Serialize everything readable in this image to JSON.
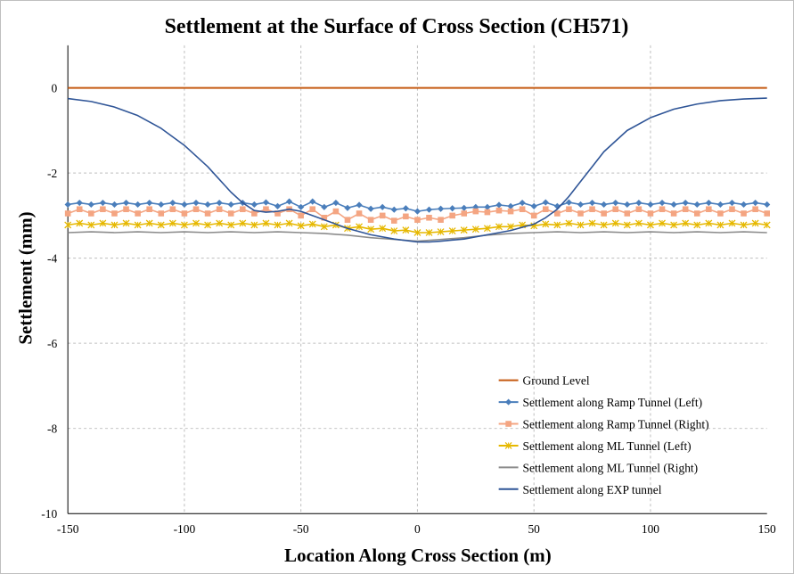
{
  "chart_data": {
    "type": "line",
    "title": "Settlement at the Surface of Cross Section (CH571)",
    "xlabel": "Location Along Cross Section (m)",
    "ylabel": "Settlement (mm)",
    "xlim": [
      -150,
      150
    ],
    "ylim": [
      -10,
      1
    ],
    "xticks": [
      "-150",
      "-100",
      "-50",
      "0",
      "50",
      "100",
      "150"
    ],
    "yticks": [
      "0",
      "-2",
      "-4",
      "-6",
      "-8",
      "-10"
    ],
    "grid": true,
    "legend_position": "bottom-right",
    "series": [
      {
        "name": "Ground Level",
        "color": "#c55a11",
        "marker": "none",
        "x": [
          -150,
          150
        ],
        "y": [
          0,
          0
        ]
      },
      {
        "name": "Settlement along Ramp Tunnel (Left)",
        "color": "#4a7ebb",
        "marker": "diamond",
        "x": [
          -150,
          -145,
          -140,
          -135,
          -130,
          -125,
          -120,
          -115,
          -110,
          -105,
          -100,
          -95,
          -90,
          -85,
          -80,
          -75,
          -70,
          -65,
          -60,
          -55,
          -50,
          -45,
          -40,
          -35,
          -30,
          -25,
          -20,
          -15,
          -10,
          -5,
          0,
          5,
          10,
          15,
          20,
          25,
          30,
          35,
          40,
          45,
          50,
          55,
          60,
          65,
          70,
          75,
          80,
          85,
          90,
          95,
          100,
          105,
          110,
          115,
          120,
          125,
          130,
          135,
          140,
          145,
          150
        ],
        "y": [
          -2.74,
          -2.7,
          -2.74,
          -2.7,
          -2.74,
          -2.7,
          -2.74,
          -2.7,
          -2.74,
          -2.7,
          -2.74,
          -2.7,
          -2.74,
          -2.7,
          -2.74,
          -2.7,
          -2.74,
          -2.69,
          -2.78,
          -2.67,
          -2.8,
          -2.67,
          -2.8,
          -2.7,
          -2.82,
          -2.75,
          -2.84,
          -2.8,
          -2.86,
          -2.83,
          -2.9,
          -2.86,
          -2.84,
          -2.83,
          -2.82,
          -2.8,
          -2.8,
          -2.75,
          -2.78,
          -2.7,
          -2.78,
          -2.69,
          -2.78,
          -2.69,
          -2.74,
          -2.7,
          -2.74,
          -2.7,
          -2.74,
          -2.7,
          -2.74,
          -2.7,
          -2.74,
          -2.7,
          -2.74,
          -2.7,
          -2.74,
          -2.7,
          -2.74,
          -2.7,
          -2.74
        ]
      },
      {
        "name": "Settlement along Ramp Tunnel (Right)",
        "color": "#f4a582",
        "marker": "square",
        "x": [
          -150,
          -145,
          -140,
          -135,
          -130,
          -125,
          -120,
          -115,
          -110,
          -105,
          -100,
          -95,
          -90,
          -85,
          -80,
          -75,
          -70,
          -65,
          -60,
          -55,
          -50,
          -45,
          -40,
          -35,
          -30,
          -25,
          -20,
          -15,
          -10,
          -5,
          0,
          5,
          10,
          15,
          20,
          25,
          30,
          35,
          40,
          45,
          50,
          55,
          60,
          65,
          70,
          75,
          80,
          85,
          90,
          95,
          100,
          105,
          110,
          115,
          120,
          125,
          130,
          135,
          140,
          145,
          150
        ],
        "y": [
          -2.95,
          -2.85,
          -2.95,
          -2.85,
          -2.95,
          -2.85,
          -2.95,
          -2.85,
          -2.95,
          -2.85,
          -2.95,
          -2.85,
          -2.95,
          -2.85,
          -2.95,
          -2.85,
          -2.95,
          -2.85,
          -2.95,
          -2.85,
          -3.0,
          -2.85,
          -3.05,
          -2.9,
          -3.1,
          -2.95,
          -3.1,
          -3.0,
          -3.12,
          -3.02,
          -3.1,
          -3.05,
          -3.1,
          -3.0,
          -2.95,
          -2.9,
          -2.92,
          -2.88,
          -2.9,
          -2.85,
          -3.0,
          -2.85,
          -2.95,
          -2.85,
          -2.95,
          -2.85,
          -2.95,
          -2.85,
          -2.95,
          -2.85,
          -2.95,
          -2.85,
          -2.95,
          -2.85,
          -2.95,
          -2.85,
          -2.95,
          -2.85,
          -2.95,
          -2.85,
          -2.95
        ]
      },
      {
        "name": "Settlement along ML Tunnel (Left)",
        "color": "#e6b800",
        "marker": "x",
        "x": [
          -150,
          -145,
          -140,
          -135,
          -130,
          -125,
          -120,
          -115,
          -110,
          -105,
          -100,
          -95,
          -90,
          -85,
          -80,
          -75,
          -70,
          -65,
          -60,
          -55,
          -50,
          -45,
          -40,
          -35,
          -30,
          -25,
          -20,
          -15,
          -10,
          -5,
          0,
          5,
          10,
          15,
          20,
          25,
          30,
          35,
          40,
          45,
          50,
          55,
          60,
          65,
          70,
          75,
          80,
          85,
          90,
          95,
          100,
          105,
          110,
          115,
          120,
          125,
          130,
          135,
          140,
          145,
          150
        ],
        "y": [
          -3.22,
          -3.18,
          -3.22,
          -3.18,
          -3.22,
          -3.18,
          -3.22,
          -3.18,
          -3.22,
          -3.18,
          -3.22,
          -3.18,
          -3.22,
          -3.18,
          -3.22,
          -3.18,
          -3.22,
          -3.18,
          -3.22,
          -3.18,
          -3.24,
          -3.2,
          -3.26,
          -3.22,
          -3.3,
          -3.26,
          -3.32,
          -3.3,
          -3.36,
          -3.34,
          -3.4,
          -3.4,
          -3.38,
          -3.36,
          -3.34,
          -3.32,
          -3.3,
          -3.26,
          -3.26,
          -3.22,
          -3.24,
          -3.2,
          -3.22,
          -3.18,
          -3.22,
          -3.18,
          -3.22,
          -3.18,
          -3.22,
          -3.18,
          -3.22,
          -3.18,
          -3.22,
          -3.18,
          -3.22,
          -3.18,
          -3.22,
          -3.18,
          -3.22,
          -3.18,
          -3.22
        ]
      },
      {
        "name": "Settlement along ML Tunnel (Right)",
        "color": "#8c8c8c",
        "marker": "none",
        "x": [
          -150,
          -140,
          -130,
          -120,
          -110,
          -100,
          -90,
          -80,
          -70,
          -60,
          -50,
          -40,
          -30,
          -20,
          -10,
          0,
          10,
          20,
          30,
          40,
          50,
          60,
          70,
          80,
          90,
          100,
          110,
          120,
          130,
          140,
          150
        ],
        "y": [
          -3.4,
          -3.38,
          -3.4,
          -3.38,
          -3.4,
          -3.38,
          -3.4,
          -3.38,
          -3.4,
          -3.38,
          -3.4,
          -3.42,
          -3.46,
          -3.52,
          -3.56,
          -3.6,
          -3.56,
          -3.52,
          -3.46,
          -3.42,
          -3.4,
          -3.38,
          -3.4,
          -3.38,
          -3.4,
          -3.38,
          -3.4,
          -3.38,
          -3.4,
          -3.38,
          -3.4
        ]
      },
      {
        "name": "Settlement along EXP tunnel",
        "color": "#2f5597",
        "marker": "none",
        "x": [
          -150,
          -140,
          -130,
          -120,
          -110,
          -100,
          -90,
          -85,
          -80,
          -75,
          -70,
          -65,
          -60,
          -55,
          -50,
          -45,
          -40,
          -30,
          -20,
          -10,
          0,
          5,
          10,
          20,
          30,
          40,
          50,
          55,
          60,
          65,
          70,
          75,
          80,
          90,
          100,
          110,
          120,
          130,
          140,
          150
        ],
        "y": [
          -0.25,
          -0.32,
          -0.45,
          -0.65,
          -0.95,
          -1.35,
          -1.85,
          -2.15,
          -2.45,
          -2.7,
          -2.88,
          -2.92,
          -2.9,
          -2.85,
          -2.9,
          -3.0,
          -3.1,
          -3.3,
          -3.45,
          -3.55,
          -3.62,
          -3.62,
          -3.6,
          -3.55,
          -3.45,
          -3.35,
          -3.2,
          -3.05,
          -2.85,
          -2.55,
          -2.2,
          -1.85,
          -1.5,
          -1.0,
          -0.7,
          -0.5,
          -0.38,
          -0.3,
          -0.26,
          -0.24
        ]
      }
    ]
  }
}
